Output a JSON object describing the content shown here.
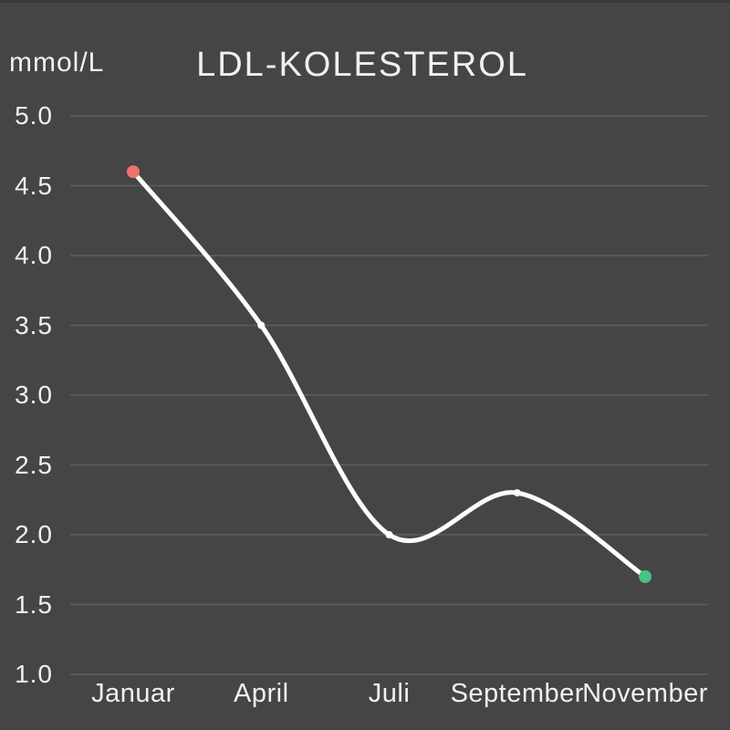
{
  "chart_data": {
    "type": "line",
    "title": "LDL-KOLESTEROL",
    "ylabel": "mmol/L",
    "xlabel": "",
    "categories": [
      "Januar",
      "April",
      "Juli",
      "September",
      "November"
    ],
    "series": [
      {
        "name": "LDL-kolesterol",
        "values": [
          4.6,
          3.5,
          2.0,
          2.3,
          1.7
        ]
      }
    ],
    "ylim": [
      1.0,
      5.0
    ],
    "yticks": [
      5.0,
      4.5,
      4.0,
      3.5,
      3.0,
      2.5,
      2.0,
      1.5,
      1.0
    ],
    "ytick_labels": [
      "5.0",
      "4.5",
      "4.0",
      "3.5",
      "3.0",
      "2.5",
      "2.0",
      "1.5",
      "1.0"
    ],
    "grid": true,
    "legend": "none",
    "colors": {
      "background": "#454545",
      "top_strip": "#3a3a3a",
      "gridline": "#5e5e5e",
      "text": "#f0f0f0",
      "line": "#fdfdfd",
      "point": "#ffffff",
      "first_point": "#ef726c",
      "last_point": "#45c383"
    }
  }
}
